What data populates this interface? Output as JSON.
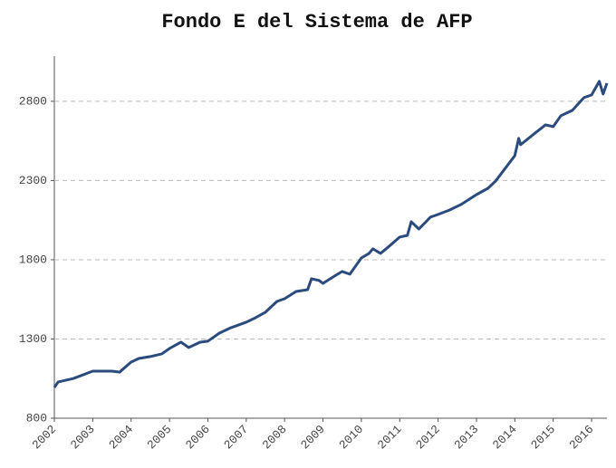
{
  "chart_data": {
    "type": "line",
    "title": "Fondo E del Sistema de AFP",
    "x": [
      2002.0,
      2002.1,
      2002.5,
      2003.0,
      2003.5,
      2003.7,
      2004.0,
      2004.2,
      2004.5,
      2004.8,
      2005.0,
      2005.3,
      2005.5,
      2005.8,
      2006.0,
      2006.3,
      2006.6,
      2007.0,
      2007.2,
      2007.5,
      2007.8,
      2008.0,
      2008.3,
      2008.6,
      2008.7,
      2008.9,
      2009.0,
      2009.3,
      2009.5,
      2009.7,
      2010.0,
      2010.2,
      2010.3,
      2010.5,
      2010.7,
      2011.0,
      2011.2,
      2011.3,
      2011.5,
      2011.8,
      2012.0,
      2012.3,
      2012.6,
      2013.0,
      2013.3,
      2013.5,
      2014.0,
      2014.1,
      2014.15,
      2014.5,
      2014.8,
      2015.0,
      2015.2,
      2015.5,
      2015.8,
      2016.0,
      2016.2,
      2016.3,
      2016.4
    ],
    "series": [
      {
        "name": "Fondo E",
        "color": "#2b4a7e",
        "values": [
          994,
          1029,
          1051,
          1097,
          1097,
          1091,
          1154,
          1177,
          1189,
          1206,
          1240,
          1280,
          1246,
          1280,
          1286,
          1337,
          1371,
          1406,
          1429,
          1469,
          1537,
          1554,
          1600,
          1611,
          1680,
          1669,
          1651,
          1697,
          1726,
          1709,
          1811,
          1840,
          1869,
          1840,
          1880,
          1943,
          1954,
          2040,
          1994,
          2069,
          2086,
          2114,
          2149,
          2211,
          2251,
          2297,
          2457,
          2566,
          2526,
          2594,
          2651,
          2640,
          2709,
          2743,
          2823,
          2840,
          2926,
          2846,
          2914
        ]
      }
    ],
    "xlim": [
      2002,
      2016.4
    ],
    "xticks": [
      2002,
      2003,
      2004,
      2005,
      2006,
      2007,
      2008,
      2009,
      2010,
      2011,
      2012,
      2013,
      2014,
      2015,
      2016
    ],
    "ylim": [
      800,
      3085
    ],
    "yticks": [
      800,
      1300,
      1800,
      2300,
      2800
    ],
    "grid": true
  }
}
